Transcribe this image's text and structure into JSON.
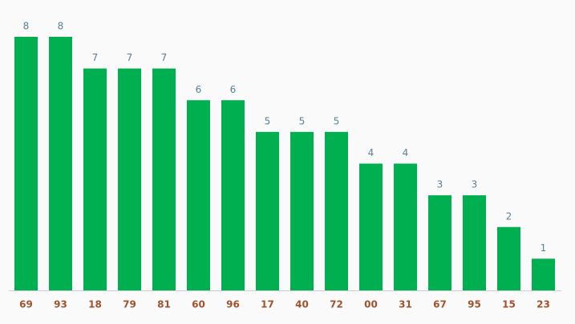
{
  "chart_data": {
    "type": "bar",
    "categories": [
      "69",
      "93",
      "18",
      "79",
      "81",
      "60",
      "96",
      "17",
      "40",
      "72",
      "00",
      "31",
      "67",
      "95",
      "15",
      "23"
    ],
    "values": [
      8,
      8,
      7,
      7,
      7,
      6,
      6,
      5,
      5,
      5,
      4,
      4,
      3,
      3,
      2,
      1
    ],
    "color": "#00b050"
  }
}
